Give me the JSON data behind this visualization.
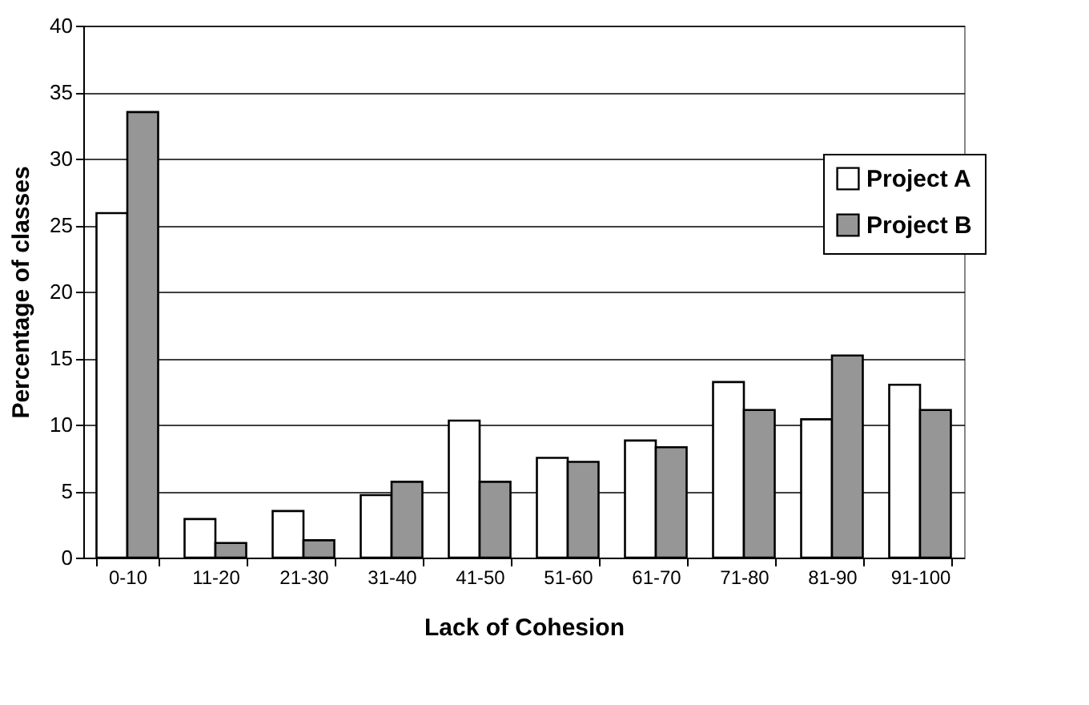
{
  "chart_data": {
    "type": "bar",
    "xlabel": "Lack of Cohesion",
    "ylabel": "Percentage of classes",
    "categories": [
      "0-10",
      "11-20",
      "21-30",
      "31-40",
      "41-50",
      "51-60",
      "61-70",
      "71-80",
      "81-90",
      "91-100"
    ],
    "series": [
      {
        "name": "Project A",
        "color": "#ffffff",
        "values": [
          25.9,
          2.9,
          3.5,
          4.7,
          10.3,
          7.5,
          8.8,
          13.2,
          10.4,
          13.0
        ]
      },
      {
        "name": "Project B",
        "color": "#969696",
        "values": [
          33.5,
          1.1,
          1.3,
          5.7,
          5.7,
          7.2,
          8.3,
          11.1,
          15.2,
          11.1
        ]
      }
    ],
    "ylim": [
      0,
      40
    ],
    "yticks": [
      0,
      5,
      10,
      15,
      20,
      25,
      30,
      35,
      40
    ],
    "grid": "y",
    "legend": "right"
  }
}
